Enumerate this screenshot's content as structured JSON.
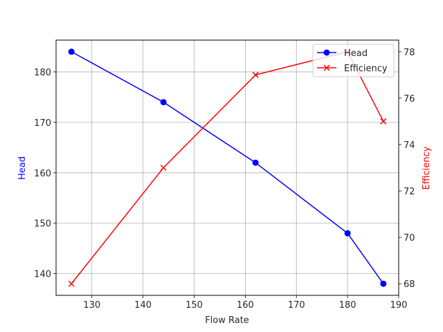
{
  "chart_data": {
    "type": "line",
    "title": "",
    "xlabel": "Flow Rate",
    "ylabel": "Head",
    "y2label": "Efficiency",
    "x": [
      126,
      144,
      162,
      180,
      187
    ],
    "xlim": [
      123,
      190
    ],
    "xticks": [
      130,
      140,
      150,
      160,
      170,
      180,
      190
    ],
    "ylim": [
      135.7,
      186.3
    ],
    "yticks": [
      140,
      150,
      160,
      170,
      180
    ],
    "y2lim": [
      67.5,
      78.5
    ],
    "y2ticks": [
      68,
      70,
      72,
      74,
      76,
      78
    ],
    "grid": true,
    "legend_position": "upper right",
    "series": [
      {
        "name": "Head",
        "axis": "left",
        "color": "#0000ff",
        "marker": "o",
        "values": [
          184,
          174,
          162,
          148,
          138
        ]
      },
      {
        "name": "Efficiency",
        "axis": "right",
        "color": "#ff0000",
        "marker": "x",
        "values": [
          68,
          73,
          77,
          78,
          75
        ]
      }
    ]
  },
  "labels": {
    "xlabel": "Flow Rate",
    "ylabel_left": "Head",
    "ylabel_right": "Efficiency",
    "legend_head": "Head",
    "legend_efficiency": "Efficiency"
  }
}
